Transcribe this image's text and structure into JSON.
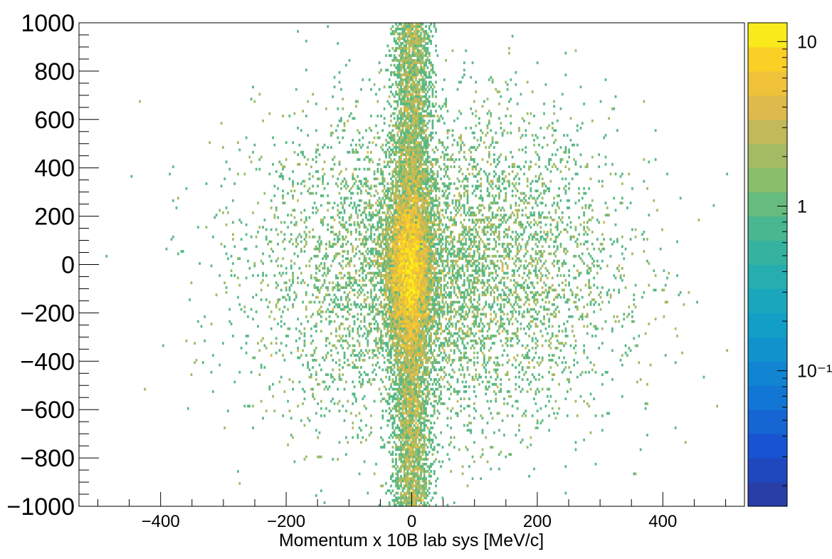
{
  "chart_data": {
    "type": "heatmap",
    "title": "",
    "xlabel": "Momentum x 10B  lab sys [MeV/c]",
    "ylabel": "",
    "xlim": [
      -530,
      530
    ],
    "ylim": [
      -1000,
      1000
    ],
    "x_ticks": [
      -400,
      -200,
      0,
      200,
      400
    ],
    "x_tick_labels": [
      "−400",
      "−200",
      "0",
      "200",
      "400"
    ],
    "y_ticks": [
      -1000,
      -800,
      -600,
      -400,
      -200,
      0,
      200,
      400,
      600,
      800,
      1000
    ],
    "y_tick_labels": [
      "−1000",
      "−800",
      "−600",
      "−400",
      "−200",
      "0",
      "200",
      "400",
      "600",
      "800",
      "1000"
    ],
    "z_scale": "log",
    "zlim": [
      0.015,
      13
    ],
    "z_tick_labels": [
      "10",
      "1",
      "10⁻¹"
    ],
    "z_ticks": [
      10,
      1,
      0.1
    ],
    "grid": false,
    "colormap": "viridis-like (blue to yellow)",
    "distribution": {
      "description_values": "counts concentrated near x=0, spread along y; broad horizontal band near y=-100",
      "core_column": {
        "x_center": 0,
        "x_sigma": 15,
        "y_range": [
          -1000,
          1000
        ],
        "peak_value": 5
      },
      "broad_cloud": {
        "x_center": 40,
        "x_sigma": 140,
        "y_center": -20,
        "y_sigma": 330,
        "value": 1
      },
      "central_peak": {
        "x_center": -5,
        "y_center": -20,
        "x_sigma": 20,
        "y_sigma": 170,
        "value": 8
      }
    }
  },
  "colors": {
    "axis": "#000000",
    "frame": "#000000",
    "background": "#ffffff",
    "palette_low": "#2d3a9c",
    "palette_high": "#f8f815"
  }
}
